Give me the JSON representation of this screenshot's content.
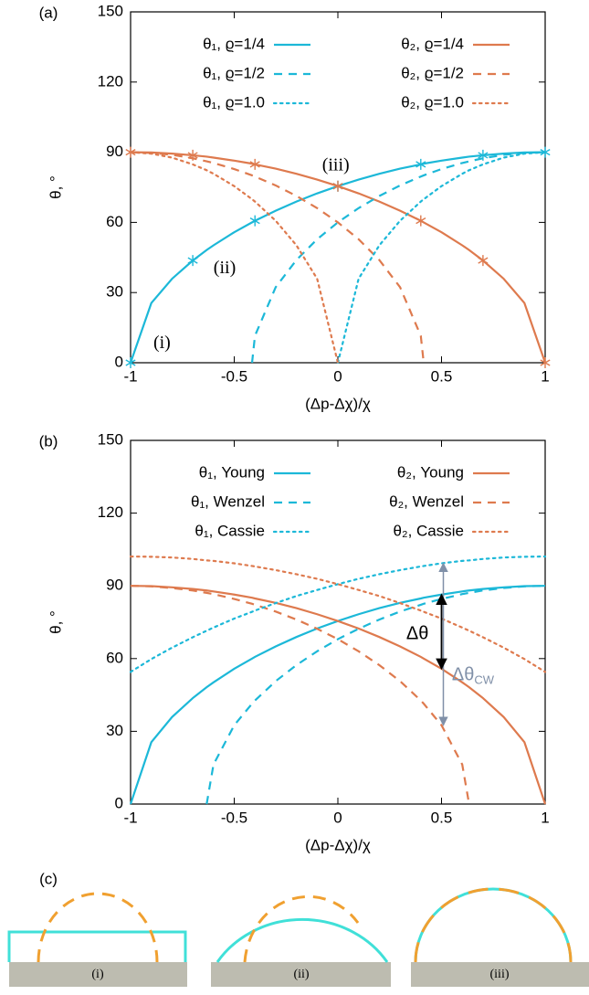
{
  "chart_data": [
    {
      "type": "line",
      "panel_label": "(a)",
      "xlabel": "(Δp-Δχ)/χ",
      "ylabel": "θ, °",
      "x": [
        -1,
        -0.9,
        -0.8,
        -0.7,
        -0.633,
        -0.6,
        -0.5,
        -0.414,
        -0.4,
        -0.3,
        -0.2,
        -0.1,
        0,
        0.1,
        0.2,
        0.3,
        0.4,
        0.414,
        0.5,
        0.6,
        0.633,
        0.7,
        0.8,
        0.9,
        1
      ],
      "xlim": [
        -1,
        1
      ],
      "ylim": [
        0,
        150
      ],
      "xticks": [
        -1,
        -0.5,
        0,
        0.5,
        1
      ],
      "yticks": [
        0,
        30,
        60,
        90,
        120,
        150
      ],
      "legend": "top",
      "markers": [
        -1,
        -0.7,
        -0.4,
        0,
        0.4,
        0.7,
        1
      ],
      "annotations": [
        "(i)",
        "(ii)",
        "(iii)"
      ],
      "series": [
        {
          "name": "θ₁, ϱ=1/4",
          "color": "#1cb8d8",
          "dash": "solid",
          "marker": true,
          "values": [
            0,
            25.5,
            35.9,
            43.7,
            48.2,
            50.2,
            55.8,
            60,
            60.7,
            65.0,
            68.9,
            72.4,
            75.5,
            78.3,
            80.8,
            83.0,
            84.8,
            85.1,
            86.4,
            87.7,
            88.1,
            88.7,
            89.4,
            89.9,
            90
          ]
        },
        {
          "name": "θ₂, ϱ=1/4",
          "color": "#de7a4e",
          "dash": "solid",
          "marker": true,
          "values": [
            90,
            89.9,
            89.4,
            88.7,
            88.1,
            87.7,
            86.4,
            85.1,
            84.8,
            83.0,
            80.8,
            78.3,
            75.5,
            72.4,
            68.9,
            65.0,
            60.7,
            60,
            55.8,
            50.2,
            48.2,
            43.7,
            35.9,
            25.5,
            0
          ]
        },
        {
          "name": "θ₁, ϱ=1/2",
          "color": "#1cb8d8",
          "dash": "dashed",
          "values": [
            null,
            null,
            null,
            null,
            null,
            null,
            null,
            0,
            11.5,
            32.3,
            43.9,
            52.8,
            60,
            66.1,
            71.3,
            75.8,
            79.6,
            80.1,
            82.8,
            85.4,
            86.1,
            87.4,
            88.9,
            89.7,
            90
          ]
        },
        {
          "name": "θ₂, ϱ=1/2",
          "color": "#de7a4e",
          "dash": "dashed",
          "values": [
            90,
            89.7,
            88.9,
            87.4,
            86.1,
            85.4,
            82.8,
            80.1,
            79.6,
            75.8,
            71.3,
            66.1,
            60,
            52.8,
            43.9,
            32.3,
            11.5,
            0,
            null,
            null,
            null,
            null,
            null,
            null,
            null
          ]
        },
        {
          "name": "θ₁, ϱ=1.0",
          "color": "#1cb8d8",
          "dash": "dotted",
          "values": [
            null,
            null,
            null,
            null,
            null,
            null,
            null,
            null,
            null,
            null,
            null,
            null,
            0,
            35.9,
            50.2,
            60.7,
            68.9,
            69.9,
            75.5,
            80.8,
            82.3,
            84.8,
            87.7,
            89.4,
            90
          ]
        },
        {
          "name": "θ₂, ϱ=1.0",
          "color": "#de7a4e",
          "dash": "dotted",
          "values": [
            90,
            89.4,
            87.7,
            84.8,
            82.3,
            80.8,
            75.5,
            69.9,
            68.9,
            60.7,
            50.2,
            35.9,
            0,
            null,
            null,
            null,
            null,
            null,
            null,
            null,
            null,
            null,
            null,
            null,
            null
          ]
        }
      ]
    },
    {
      "type": "line",
      "panel_label": "(b)",
      "xlabel": "(Δp-Δχ)/χ",
      "ylabel": "θ, °",
      "x": [
        -1,
        -0.9,
        -0.8,
        -0.7,
        -0.633,
        -0.6,
        -0.5,
        -0.414,
        -0.4,
        -0.3,
        -0.2,
        -0.1,
        0,
        0.1,
        0.2,
        0.3,
        0.4,
        0.414,
        0.5,
        0.6,
        0.633,
        0.7,
        0.8,
        0.9,
        1
      ],
      "xlim": [
        -1,
        1
      ],
      "ylim": [
        0,
        150
      ],
      "xticks": [
        -1,
        -0.5,
        0,
        0.5,
        1
      ],
      "yticks": [
        0,
        30,
        60,
        90,
        120,
        150
      ],
      "legend": "top",
      "annotations": [
        {
          "text": "Δθ"
        },
        {
          "text": "Δθ",
          "sub": "CW"
        }
      ],
      "series": [
        {
          "name": "θ₁, Young",
          "color": "#1cb8d8",
          "dash": "solid",
          "values": [
            0,
            25.5,
            35.9,
            43.7,
            48.2,
            50.2,
            55.8,
            60,
            60.7,
            65.0,
            68.9,
            72.4,
            75.5,
            78.3,
            80.8,
            83.0,
            84.8,
            85.1,
            86.4,
            87.7,
            88.1,
            88.7,
            89.4,
            89.9,
            90
          ]
        },
        {
          "name": "θ₂, Young",
          "color": "#de7a4e",
          "dash": "solid",
          "values": [
            90,
            89.9,
            89.4,
            88.7,
            88.1,
            87.7,
            86.4,
            85.1,
            84.8,
            83.0,
            80.8,
            78.3,
            75.5,
            72.4,
            68.9,
            65.0,
            60.7,
            60,
            55.8,
            50.2,
            48.2,
            43.7,
            35.9,
            25.5,
            0
          ]
        },
        {
          "name": "θ₁, Wenzel",
          "color": "#1cb8d8",
          "dash": "dashed",
          "values": [
            null,
            null,
            null,
            null,
            0,
            16.3,
            32.5,
            41.4,
            42.7,
            50.7,
            57.3,
            63.0,
            68.0,
            72.3,
            76.1,
            79.4,
            82.2,
            82.6,
            84.6,
            86.6,
            87.1,
            88.1,
            89.1,
            89.8,
            90
          ]
        },
        {
          "name": "θ₂, Wenzel",
          "color": "#de7a4e",
          "dash": "dashed",
          "values": [
            90,
            89.8,
            89.1,
            88.1,
            87.1,
            86.6,
            84.6,
            82.6,
            82.2,
            79.4,
            76.1,
            72.3,
            68.0,
            63.0,
            57.3,
            50.7,
            42.7,
            41.4,
            32.5,
            16.3,
            0,
            null,
            null,
            null,
            null
          ]
        },
        {
          "name": "θ₁, Cassie",
          "color": "#1cb8d8",
          "dash": "dotted",
          "values": [
            54.5,
            59.8,
            64.5,
            68.8,
            71.5,
            72.8,
            76.5,
            79.3,
            79.8,
            82.9,
            85.8,
            88.3,
            90.7,
            92.9,
            94.8,
            96.5,
            98.0,
            98.2,
            99.3,
            100.3,
            100.5,
            101.1,
            101.7,
            102.0,
            102.1
          ]
        },
        {
          "name": "θ₂, Cassie",
          "color": "#de7a4e",
          "dash": "dotted",
          "values": [
            102.1,
            102.0,
            101.7,
            101.1,
            100.5,
            100.3,
            99.3,
            98.2,
            98.0,
            96.5,
            94.8,
            92.9,
            90.7,
            88.3,
            85.8,
            82.9,
            79.8,
            79.3,
            76.5,
            72.8,
            71.5,
            68.8,
            64.5,
            59.8,
            54.5
          ]
        }
      ]
    }
  ],
  "diagram": {
    "panel_label": "(c)",
    "items": [
      "(i)",
      "(ii)",
      "(iii)"
    ]
  }
}
